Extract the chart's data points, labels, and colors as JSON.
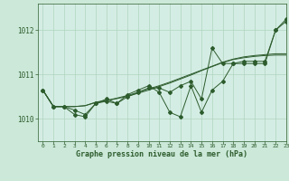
{
  "xlabel": "Graphe pression niveau de la mer (hPa)",
  "background_color": "#cbe8d8",
  "plot_bg_color": "#d4ede4",
  "grid_color": "#b0d4c0",
  "line_color": "#2d5c2d",
  "xlim": [
    -0.5,
    23
  ],
  "ylim": [
    1009.5,
    1012.6
  ],
  "yticks": [
    1010,
    1011,
    1012
  ],
  "xticks": [
    0,
    1,
    2,
    3,
    4,
    5,
    6,
    7,
    8,
    9,
    10,
    11,
    12,
    13,
    14,
    15,
    16,
    17,
    18,
    19,
    20,
    21,
    22,
    23
  ],
  "series_smooth1": [
    1010.65,
    1010.28,
    1010.28,
    1010.28,
    1010.3,
    1010.38,
    1010.42,
    1010.47,
    1010.53,
    1010.6,
    1010.68,
    1010.75,
    1010.83,
    1010.92,
    1011.01,
    1011.1,
    1011.19,
    1011.28,
    1011.35,
    1011.4,
    1011.43,
    1011.45,
    1011.47,
    1011.47
  ],
  "series_smooth2": [
    1010.65,
    1010.28,
    1010.28,
    1010.28,
    1010.3,
    1010.37,
    1010.41,
    1010.46,
    1010.51,
    1010.58,
    1010.65,
    1010.73,
    1010.81,
    1010.9,
    1010.99,
    1011.09,
    1011.18,
    1011.27,
    1011.34,
    1011.38,
    1011.41,
    1011.43,
    1011.44,
    1011.44
  ],
  "series_jagged1": [
    1010.65,
    1010.28,
    1010.28,
    1010.1,
    1010.05,
    1010.35,
    1010.4,
    1010.35,
    1010.55,
    1010.65,
    1010.75,
    1010.6,
    1010.15,
    1010.05,
    1010.75,
    1010.15,
    1010.65,
    1010.85,
    1011.25,
    1011.25,
    1011.25,
    1011.25,
    1012.0,
    1012.25
  ],
  "series_jagged2": [
    1010.65,
    1010.28,
    1010.28,
    1010.2,
    1010.1,
    1010.35,
    1010.45,
    1010.35,
    1010.5,
    1010.6,
    1010.7,
    1010.7,
    1010.6,
    1010.75,
    1010.85,
    1010.45,
    1011.6,
    1011.25,
    1011.25,
    1011.3,
    1011.3,
    1011.3,
    1012.0,
    1012.2
  ]
}
